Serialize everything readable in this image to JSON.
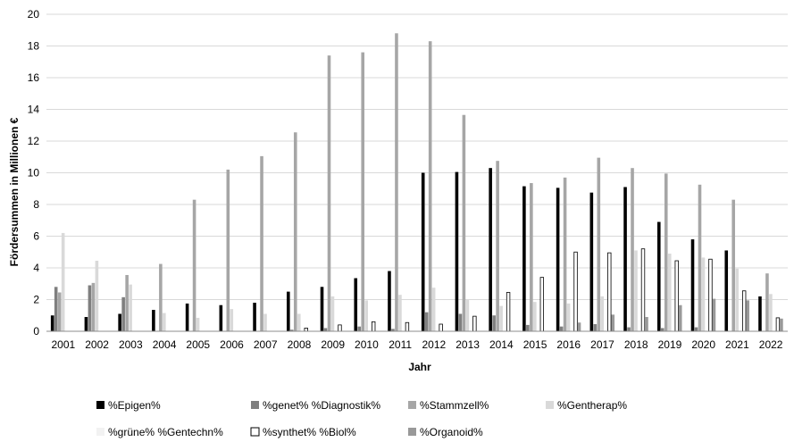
{
  "chart_data": {
    "type": "bar",
    "xlabel": "Jahr",
    "ylabel": "Fördersummen in Millionen €",
    "ylim": [
      0,
      20
    ],
    "yticks": [
      0,
      2,
      4,
      6,
      8,
      10,
      12,
      14,
      16,
      18,
      20
    ],
    "grid": "horizontal",
    "legend_position": "bottom",
    "categories": [
      "2001",
      "2002",
      "2003",
      "2004",
      "2005",
      "2006",
      "2007",
      "2008",
      "2009",
      "2010",
      "2011",
      "2012",
      "2013",
      "2014",
      "2015",
      "2016",
      "2017",
      "2018",
      "2019",
      "2020",
      "2021",
      "2022"
    ],
    "series": [
      {
        "name": "%Epigen%",
        "color": "#000000",
        "values": [
          1.0,
          0.9,
          1.1,
          1.35,
          1.75,
          1.65,
          1.8,
          2.5,
          2.8,
          3.35,
          3.8,
          10.0,
          10.05,
          10.3,
          9.15,
          9.05,
          8.75,
          9.1,
          6.9,
          5.8,
          5.1,
          2.2
        ]
      },
      {
        "name": "%genet% %Diagnostik%",
        "color": "#7f7f7f",
        "values": [
          2.8,
          2.9,
          2.15,
          0,
          0,
          0,
          0,
          0.1,
          0.2,
          0.3,
          0.15,
          1.2,
          1.1,
          1.0,
          0.4,
          0.3,
          0.45,
          0.25,
          0.2,
          0.25,
          0,
          0
        ]
      },
      {
        "name": "%Stammzell%",
        "color": "#a6a6a6",
        "values": [
          2.45,
          3.05,
          3.55,
          4.25,
          8.3,
          10.2,
          11.05,
          12.55,
          17.4,
          17.6,
          18.8,
          18.3,
          13.65,
          10.75,
          9.35,
          9.7,
          10.95,
          10.3,
          9.95,
          9.25,
          8.3,
          3.65
        ]
      },
      {
        "name": "%Gentherap%",
        "color": "#d9d9d9",
        "values": [
          6.2,
          4.45,
          2.95,
          1.15,
          0.85,
          1.4,
          1.1,
          1.1,
          2.2,
          1.95,
          2.3,
          2.75,
          2.0,
          1.6,
          1.85,
          1.75,
          2.2,
          5.1,
          4.9,
          4.65,
          3.95,
          2.35
        ]
      },
      {
        "name": "%grüne% %Gentechn%",
        "color": "#f2f2f2",
        "values": [
          0,
          0,
          0,
          0,
          0,
          0,
          0,
          0,
          0,
          0,
          0,
          0,
          0,
          0,
          0,
          0,
          0,
          0,
          0,
          0,
          0,
          0
        ]
      },
      {
        "name": "%synthet% %Biol%",
        "color": "#ffffff",
        "values": [
          0,
          0,
          0,
          0,
          0,
          0,
          0,
          0.2,
          0.4,
          0.6,
          0.55,
          0.45,
          0.95,
          2.45,
          3.4,
          5.0,
          4.95,
          5.2,
          4.45,
          4.55,
          2.55,
          0.85
        ]
      },
      {
        "name": "%Organoid%",
        "color": "#999999",
        "values": [
          0,
          0,
          0,
          0,
          0,
          0,
          0,
          0,
          0,
          0,
          0,
          0,
          0,
          0,
          0,
          0.55,
          1.05,
          0.9,
          1.65,
          2.05,
          1.95,
          0.8
        ]
      }
    ]
  }
}
